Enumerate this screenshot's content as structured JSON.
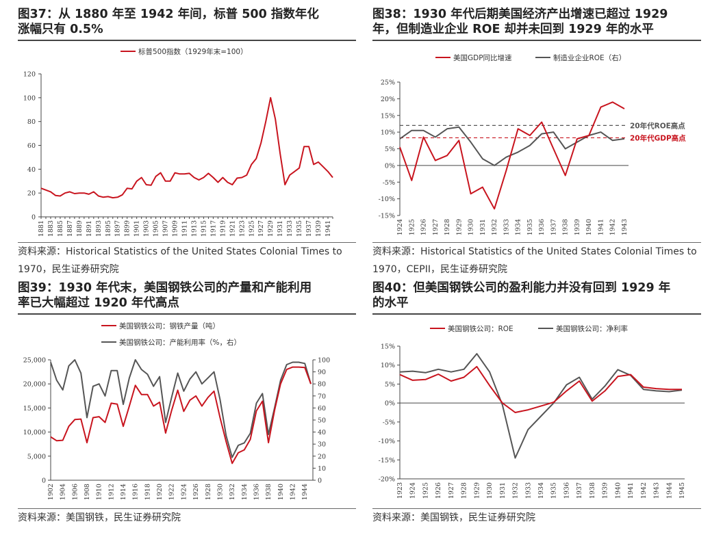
{
  "colors": {
    "red": "#c8141e",
    "gray": "#555555",
    "axis": "#444444"
  },
  "panels": [
    {
      "id": "p37",
      "title_lines": [
        "图37：从 1880 年至 1942 年间，标普 500 指数年化",
        "涨幅只有 0.5%"
      ],
      "source_lines": [
        "资料来源：Historical Statistics of the United States Colonial Times to",
        "1970，民生证券研究院"
      ]
    },
    {
      "id": "p38",
      "title_lines": [
        "图38：1930 年代后期美国经济产出增速已超过 1929",
        "年，但制造业企业 ROE 却并未回到 1929 年的水平"
      ],
      "source_lines": [
        "资料来源：Historical Statistics of the United States Colonial Times to",
        "1970，CEPII，民生证券研究院"
      ]
    },
    {
      "id": "p39",
      "title_lines": [
        "图39：1930 年代末，美国钢铁公司的产量和产能利用",
        "率已大幅超过 1920 年代高点"
      ],
      "source_lines": [
        "资料来源：美国钢铁，民生证券研究院"
      ]
    },
    {
      "id": "p40",
      "title_lines": [
        "图40：但美国钢铁公司的盈利能力并没有回到 1929 年",
        "的水平"
      ],
      "source_lines": [
        "资料来源：美国钢铁，民生证券研究院"
      ]
    }
  ],
  "chart_data": [
    {
      "id": "p37",
      "type": "line",
      "title": "图37：从 1880 年至 1942 年间，标普 500 指数年化涨幅只有 0.5%",
      "x": [
        1881,
        1882,
        1883,
        1884,
        1885,
        1886,
        1887,
        1888,
        1889,
        1890,
        1891,
        1892,
        1893,
        1894,
        1895,
        1896,
        1897,
        1898,
        1899,
        1900,
        1901,
        1902,
        1903,
        1904,
        1905,
        1906,
        1907,
        1908,
        1909,
        1910,
        1911,
        1912,
        1913,
        1914,
        1915,
        1916,
        1917,
        1918,
        1919,
        1920,
        1921,
        1922,
        1923,
        1924,
        1925,
        1926,
        1927,
        1928,
        1929,
        1930,
        1931,
        1932,
        1933,
        1934,
        1935,
        1936,
        1937,
        1938,
        1939,
        1940,
        1941,
        1942
      ],
      "x_tick_labels": [
        "1881",
        "1883",
        "1885",
        "1887",
        "1889",
        "1891",
        "1893",
        "1895",
        "1897",
        "1899",
        "1901",
        "1903",
        "1905",
        "1907",
        "1909",
        "1911",
        "1913",
        "1915",
        "1917",
        "1919",
        "1921",
        "1923",
        "1925",
        "1927",
        "1929",
        "1931",
        "1933",
        "1935",
        "1937",
        "1939",
        "1941"
      ],
      "series": [
        {
          "name": "标普500指数（1929年末=100）",
          "color": "#c8141e",
          "values": [
            24,
            22.5,
            21,
            18,
            17.5,
            20,
            21,
            19.5,
            20,
            20,
            19,
            21,
            17.5,
            16.5,
            17,
            16,
            16.5,
            18.5,
            24,
            23.5,
            30,
            33,
            27,
            26.5,
            34,
            37,
            30,
            30,
            37,
            36,
            36,
            36.5,
            33,
            31,
            33,
            36.5,
            33,
            29,
            33,
            29,
            27,
            32.5,
            33,
            35,
            44,
            49,
            62,
            80,
            100,
            82,
            53,
            27,
            35,
            38,
            41,
            59,
            59,
            44,
            46,
            42,
            38,
            33
          ]
        }
      ],
      "ylim": [
        0,
        120
      ],
      "yticks": [
        0,
        20,
        40,
        60,
        80,
        100,
        120
      ],
      "legend": "top-center"
    },
    {
      "id": "p38",
      "type": "line",
      "title": "图38：1930 年代后期美国经济产出增速已超过 1929 年，但制造业企业 ROE 却并未回到 1929 年的水平",
      "x": [
        1924,
        1925,
        1926,
        1927,
        1928,
        1929,
        1930,
        1931,
        1932,
        1933,
        1934,
        1935,
        1936,
        1937,
        1938,
        1939,
        1940,
        1941,
        1942,
        1943
      ],
      "series": [
        {
          "name": "美国GDP同比增速",
          "color": "#c8141e",
          "values": [
            5.5,
            -4.5,
            8.5,
            1.5,
            3,
            7.5,
            -8.5,
            -6.5,
            -13,
            -1.5,
            11,
            9,
            13,
            5,
            -3,
            8,
            9,
            17.5,
            19,
            17
          ]
        },
        {
          "name": "制造业企业ROE（右）",
          "color": "#555555",
          "values": [
            8,
            10.5,
            10.5,
            8.5,
            11,
            11.5,
            7,
            2,
            0,
            2.5,
            4,
            6,
            9.5,
            10,
            5,
            7,
            9,
            10,
            7.5,
            8
          ]
        }
      ],
      "ylim": [
        -15,
        25
      ],
      "yticks": [
        "-15%",
        "-10%",
        "-5%",
        "0%",
        "5%",
        "10%",
        "15%",
        "20%",
        "25%"
      ],
      "reference_lines": [
        {
          "label": "20年代ROE高点",
          "value": 12,
          "color": "#555555"
        },
        {
          "label": "20年代GDP高点",
          "value": 8.3,
          "color": "#c8141e"
        }
      ],
      "legend": "top-center"
    },
    {
      "id": "p39",
      "type": "line",
      "title": "图39：1930 年代末，美国钢铁公司的产量和产能利用率已大幅超过 1920 年代高点",
      "x": [
        1902,
        1903,
        1904,
        1905,
        1906,
        1907,
        1908,
        1909,
        1910,
        1911,
        1912,
        1913,
        1914,
        1915,
        1916,
        1917,
        1918,
        1919,
        1920,
        1921,
        1922,
        1923,
        1924,
        1925,
        1926,
        1927,
        1928,
        1929,
        1930,
        1931,
        1932,
        1933,
        1934,
        1935,
        1936,
        1937,
        1938,
        1939,
        1940,
        1941,
        1942,
        1943,
        1944,
        1945
      ],
      "series": [
        {
          "name": "美国钢铁公司：钢铁产量（吨）",
          "color": "#c8141e",
          "axis": "left",
          "values": [
            9000,
            8200,
            8300,
            11200,
            12600,
            12700,
            7800,
            13000,
            13200,
            12000,
            16000,
            15800,
            11200,
            15400,
            19700,
            17800,
            17800,
            15400,
            16200,
            9800,
            14500,
            18700,
            14300,
            16600,
            17500,
            15400,
            17200,
            18500,
            13000,
            8000,
            3500,
            5700,
            6300,
            8500,
            14400,
            16400,
            7800,
            14500,
            20000,
            23000,
            23500,
            23500,
            23400,
            20000
          ]
        },
        {
          "name": "美国钢铁公司：产能利用率（%，右）",
          "color": "#555555",
          "axis": "right",
          "values": [
            98,
            83,
            75,
            95,
            100,
            89,
            52,
            78,
            80,
            70,
            91,
            91,
            63,
            85,
            100,
            92,
            88,
            78,
            86,
            48,
            69,
            89,
            74,
            84,
            90,
            80,
            85,
            90,
            67,
            37,
            19,
            29,
            31,
            39,
            64,
            72,
            38,
            60,
            83,
            96,
            98,
            98,
            97,
            80
          ]
        }
      ],
      "x_tick_labels": [
        "1902",
        "1904",
        "1906",
        "1908",
        "1910",
        "1912",
        "1914",
        "1916",
        "1918",
        "1920",
        "1922",
        "1924",
        "1926",
        "1928",
        "1930",
        "1932",
        "1934",
        "1936",
        "1938",
        "1940",
        "1942",
        "1944"
      ],
      "ylim_left": [
        0,
        25000
      ],
      "yticks_left": [
        "0",
        "5,000",
        "10,000",
        "15,000",
        "20,000",
        "25,000"
      ],
      "ylim_right": [
        0,
        100
      ],
      "yticks_right": [
        "0",
        "10",
        "20",
        "30",
        "40",
        "50",
        "60",
        "70",
        "80",
        "90",
        "100"
      ],
      "legend": "top-center"
    },
    {
      "id": "p40",
      "type": "line",
      "title": "图40：但美国钢铁公司的盈利能力并没有回到 1929 年的水平",
      "x": [
        1923,
        1924,
        1925,
        1926,
        1927,
        1928,
        1929,
        1930,
        1931,
        1932,
        1933,
        1934,
        1935,
        1936,
        1937,
        1938,
        1939,
        1940,
        1941,
        1942,
        1943,
        1944,
        1945
      ],
      "series": [
        {
          "name": "美国钢铁公司：ROE",
          "color": "#c8141e",
          "values": [
            7.5,
            6,
            6.2,
            7.6,
            5.8,
            6.8,
            9.6,
            4.6,
            0,
            -2.5,
            -1.8,
            -0.8,
            0.2,
            3.2,
            5.8,
            0.5,
            3.2,
            7,
            7.5,
            4.2,
            3.8,
            3.6,
            3.6
          ]
        },
        {
          "name": "美国钢铁公司：净利率",
          "color": "#555555",
          "values": [
            8.2,
            8.4,
            8,
            8.9,
            8.2,
            8.9,
            13,
            8.2,
            -0.5,
            -14.5,
            -7,
            -3.5,
            0,
            4.8,
            6.8,
            1,
            4.5,
            8.8,
            7.3,
            3.6,
            3.2,
            3,
            3.4
          ]
        }
      ],
      "ylim": [
        -20,
        15
      ],
      "yticks": [
        "-20%",
        "-15%",
        "-10%",
        "-5%",
        "0%",
        "5%",
        "10%",
        "15%"
      ],
      "legend": "top-center"
    }
  ]
}
